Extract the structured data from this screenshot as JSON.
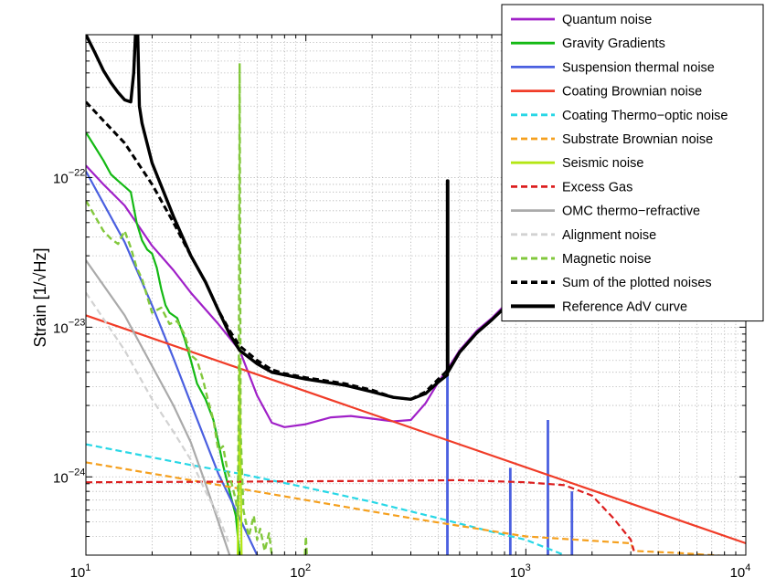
{
  "chart_data": {
    "type": "line",
    "xscale": "log",
    "yscale": "log",
    "xlim": [
      10,
      10000
    ],
    "ylim": [
      3e-25,
      9e-22
    ],
    "grid": true,
    "legend_position": "top-right",
    "ylabel": "Strain [1/√Hz]",
    "xlabel": "",
    "x_ticks": [
      {
        "value": 10,
        "base": "10",
        "exp": "1"
      },
      {
        "value": 100,
        "base": "10",
        "exp": "2"
      },
      {
        "value": 1000,
        "base": "10",
        "exp": "3"
      },
      {
        "value": 10000,
        "base": "10",
        "exp": "4"
      }
    ],
    "y_ticks": [
      {
        "value": 1e-24,
        "base": "10",
        "exp": "−24"
      },
      {
        "value": 1e-23,
        "base": "10",
        "exp": "−23"
      },
      {
        "value": 1e-22,
        "base": "10",
        "exp": "−22"
      }
    ],
    "series": [
      {
        "name": "Quantum noise",
        "color": "#a020c8",
        "dash": "solid",
        "width": 2.2,
        "points": [
          [
            10,
            1.2e-22
          ],
          [
            12,
            9e-23
          ],
          [
            15,
            6.5e-23
          ],
          [
            20,
            3.5e-23
          ],
          [
            25,
            2.4e-23
          ],
          [
            30,
            1.7e-23
          ],
          [
            40,
            1.05e-23
          ],
          [
            50,
            7e-24
          ],
          [
            60,
            3.5e-24
          ],
          [
            70,
            2.3e-24
          ],
          [
            80,
            2.15e-24
          ],
          [
            100,
            2.25e-24
          ],
          [
            130,
            2.5e-24
          ],
          [
            160,
            2.55e-24
          ],
          [
            200,
            2.45e-24
          ],
          [
            250,
            2.35e-24
          ],
          [
            300,
            2.4e-24
          ],
          [
            350,
            3.1e-24
          ],
          [
            400,
            4.3e-24
          ],
          [
            450,
            5.5e-24
          ],
          [
            500,
            7e-24
          ],
          [
            600,
            9.5e-24
          ],
          [
            700,
            1.15e-23
          ],
          [
            800,
            1.4e-23
          ],
          [
            900,
            1.6e-23
          ],
          [
            1000,
            1.8e-23
          ]
        ]
      },
      {
        "name": "Gravity Gradients",
        "color": "#14b914",
        "dash": "solid",
        "width": 2.2,
        "points": [
          [
            10,
            2e-22
          ],
          [
            11,
            1.6e-22
          ],
          [
            12,
            1.3e-22
          ],
          [
            13,
            1.05e-22
          ],
          [
            14,
            9.5e-23
          ],
          [
            15,
            8.7e-23
          ],
          [
            16,
            8e-23
          ],
          [
            17,
            5e-23
          ],
          [
            18,
            3.8e-23
          ],
          [
            19,
            3.3e-23
          ],
          [
            20,
            3.1e-23
          ],
          [
            21,
            2.5e-23
          ],
          [
            22,
            1.8e-23
          ],
          [
            23,
            1.4e-23
          ],
          [
            24,
            1.25e-23
          ],
          [
            26,
            1.15e-23
          ],
          [
            28,
            8.5e-24
          ],
          [
            30,
            6e-24
          ],
          [
            32,
            4.2e-24
          ],
          [
            35,
            3.3e-24
          ],
          [
            38,
            2.4e-24
          ],
          [
            40,
            1.7e-24
          ],
          [
            42,
            1.2e-24
          ],
          [
            45,
            8e-25
          ],
          [
            48,
            5.5e-25
          ],
          [
            50,
            3e-25
          ]
        ]
      },
      {
        "name": "Suspension thermal noise",
        "color": "#4a5fe0",
        "dash": "solid",
        "width": 2.2,
        "points": [
          [
            10,
            1.1e-22
          ],
          [
            15,
            3.7e-23
          ],
          [
            20,
            1.4e-23
          ],
          [
            25,
            6.2e-24
          ],
          [
            30,
            3.1e-24
          ],
          [
            40,
            1.05e-24
          ],
          [
            50,
            5.3e-25
          ],
          [
            60,
            3e-25
          ]
        ],
        "spikes": [
          [
            440,
            3e-25,
            5.5e-24
          ],
          [
            850,
            3e-25,
            1.15e-24
          ],
          [
            1260,
            3e-25,
            2.4e-24
          ],
          [
            1620,
            3e-25,
            8e-25
          ]
        ]
      },
      {
        "name": "Coating Brownian noise",
        "color": "#f03c28",
        "dash": "solid",
        "width": 2.2,
        "points": [
          [
            10,
            1.2e-23
          ],
          [
            10000,
            3.6e-25
          ]
        ]
      },
      {
        "name": "Coating Thermo−optic noise",
        "color": "#28d7e6",
        "dash": "dashed",
        "width": 2.2,
        "points": [
          [
            10,
            1.65e-24
          ],
          [
            20,
            1.35e-24
          ],
          [
            30,
            1.2e-24
          ],
          [
            50,
            1.05e-24
          ],
          [
            100,
            8.5e-25
          ],
          [
            200,
            6.8e-25
          ],
          [
            400,
            5.3e-25
          ],
          [
            700,
            4.3e-25
          ],
          [
            1000,
            3.8e-25
          ],
          [
            1500,
            3e-25
          ]
        ]
      },
      {
        "name": "Substrate Brownian noise",
        "color": "#f5a01e",
        "dash": "dashed",
        "width": 2.2,
        "points": [
          [
            10,
            1.25e-24
          ],
          [
            30,
            9.5e-25
          ],
          [
            100,
            7e-25
          ],
          [
            300,
            5.3e-25
          ],
          [
            1000,
            4e-25
          ],
          [
            3000,
            3.6e-25
          ],
          [
            3100,
            3.2e-25
          ],
          [
            5000,
            3.1e-25
          ],
          [
            10000,
            2.9e-25
          ]
        ]
      },
      {
        "name": "Seismic noise",
        "color": "#b4e614",
        "dash": "solid",
        "width": 2.2,
        "points": [
          [
            49,
            3e-25
          ],
          [
            49.5,
            1e-24
          ],
          [
            50,
            6e-24
          ],
          [
            50.5,
            1.2e-24
          ],
          [
            51,
            3e-25
          ]
        ]
      },
      {
        "name": "Excess Gas",
        "color": "#dc1e1e",
        "dash": "dashed",
        "width": 2.2,
        "points": [
          [
            10,
            9.2e-25
          ],
          [
            50,
            9.3e-25
          ],
          [
            200,
            9.4e-25
          ],
          [
            500,
            9.5e-25
          ],
          [
            1000,
            9.2e-25
          ],
          [
            1500,
            8.8e-25
          ],
          [
            2000,
            7.5e-25
          ],
          [
            2500,
            5.3e-25
          ],
          [
            3000,
            3.8e-25
          ],
          [
            3100,
            3.2e-25
          ]
        ]
      },
      {
        "name": "OMC thermo−refractive",
        "color": "#aaaaaa",
        "dash": "solid",
        "width": 2.2,
        "points": [
          [
            10,
            2.8e-23
          ],
          [
            15,
            1.2e-23
          ],
          [
            20,
            5.5e-24
          ],
          [
            25,
            3e-24
          ],
          [
            30,
            1.7e-24
          ],
          [
            35,
            9e-25
          ],
          [
            40,
            5e-25
          ],
          [
            45,
            3e-25
          ]
        ]
      },
      {
        "name": "Alignment noise",
        "color": "#d2d2d2",
        "dash": "dashed",
        "width": 2.2,
        "points": [
          [
            10,
            1.7e-23
          ],
          [
            15,
            7e-24
          ],
          [
            20,
            3.3e-24
          ],
          [
            25,
            2e-24
          ],
          [
            30,
            1.3e-24
          ],
          [
            35,
            8e-25
          ],
          [
            40,
            5.5e-25
          ],
          [
            45,
            3.5e-25
          ]
        ]
      },
      {
        "name": "Magnetic noise",
        "color": "#82c83c",
        "dash": "dashed",
        "width": 2.4,
        "points": [
          [
            10,
            7e-23
          ],
          [
            11,
            5.5e-23
          ],
          [
            12,
            4.4e-23
          ],
          [
            13,
            3.9e-23
          ],
          [
            14,
            3.6e-23
          ],
          [
            15,
            4.4e-23
          ],
          [
            16,
            3.4e-23
          ],
          [
            17,
            2.5e-23
          ],
          [
            18,
            2.1e-23
          ],
          [
            19,
            1.6e-23
          ],
          [
            20,
            1.25e-23
          ],
          [
            22,
            1.35e-23
          ],
          [
            24,
            1.05e-23
          ],
          [
            26,
            1.1e-23
          ],
          [
            28,
            9e-24
          ],
          [
            30,
            6.5e-24
          ],
          [
            32,
            6e-24
          ],
          [
            34,
            4.5e-24
          ],
          [
            36,
            3.2e-24
          ],
          [
            38,
            2.4e-24
          ],
          [
            40,
            1.5e-24
          ],
          [
            42,
            1.6e-24
          ],
          [
            44,
            1.1e-24
          ],
          [
            46,
            9e-25
          ],
          [
            48,
            7e-25
          ],
          [
            49,
            5.5e-25
          ],
          [
            49.5,
            3e-24
          ],
          [
            50,
            5.8e-22
          ],
          [
            50.5,
            2e-24
          ],
          [
            52,
            6e-25
          ],
          [
            55,
            4e-25
          ],
          [
            58,
            5.5e-25
          ],
          [
            60,
            3.8e-25
          ],
          [
            62,
            4.5e-25
          ],
          [
            65,
            3.2e-25
          ],
          [
            68,
            4.2e-25
          ],
          [
            70,
            3e-25
          ]
        ],
        "extra": [
          [
            99,
            3e-25
          ],
          [
            100,
            4e-25
          ],
          [
            101,
            3e-25
          ]
        ]
      },
      {
        "name": "Sum of the plotted noises",
        "color": "#000000",
        "dash": "dashed",
        "width": 3,
        "points": [
          [
            10,
            3.2e-22
          ],
          [
            12,
            2.4e-22
          ],
          [
            15,
            1.7e-22
          ],
          [
            20,
            9e-23
          ],
          [
            25,
            5e-23
          ],
          [
            30,
            3e-23
          ],
          [
            35,
            2e-23
          ],
          [
            40,
            1.3e-23
          ],
          [
            45,
            9.5e-24
          ],
          [
            50,
            7.5e-24
          ],
          [
            60,
            6e-24
          ],
          [
            70,
            5.2e-24
          ],
          [
            80,
            4.9e-24
          ],
          [
            100,
            4.6e-24
          ],
          [
            150,
            4.2e-24
          ],
          [
            200,
            3.8e-24
          ],
          [
            250,
            3.4e-24
          ],
          [
            300,
            3.3e-24
          ],
          [
            350,
            3.7e-24
          ],
          [
            400,
            4.5e-24
          ],
          [
            450,
            5.3e-24
          ],
          [
            500,
            6.8e-24
          ],
          [
            600,
            9.2e-24
          ],
          [
            700,
            1.12e-23
          ],
          [
            800,
            1.35e-23
          ],
          [
            900,
            1.55e-23
          ],
          [
            1000,
            1.8e-23
          ]
        ]
      },
      {
        "name": "Reference AdV curve",
        "color": "#000000",
        "dash": "solid",
        "width": 3.4,
        "points": [
          [
            10,
            9e-22
          ],
          [
            11,
            6.8e-22
          ],
          [
            12,
            5.2e-22
          ],
          [
            13,
            4.3e-22
          ],
          [
            14,
            3.7e-22
          ],
          [
            15,
            3.3e-22
          ],
          [
            16,
            3.2e-22
          ],
          [
            16.5,
            5e-22
          ],
          [
            16.8,
            9e-22
          ],
          [
            17.2,
            9e-22
          ],
          [
            17.5,
            3e-22
          ],
          [
            18,
            2.3e-22
          ],
          [
            20,
            1.25e-22
          ],
          [
            25,
            5.5e-23
          ],
          [
            30,
            3e-23
          ],
          [
            35,
            2e-23
          ],
          [
            40,
            1.3e-23
          ],
          [
            45,
            9e-24
          ],
          [
            50,
            7e-24
          ],
          [
            60,
            5.7e-24
          ],
          [
            70,
            5e-24
          ],
          [
            80,
            4.8e-24
          ],
          [
            100,
            4.5e-24
          ],
          [
            150,
            4.1e-24
          ],
          [
            200,
            3.7e-24
          ],
          [
            250,
            3.4e-24
          ],
          [
            300,
            3.3e-24
          ],
          [
            350,
            3.6e-24
          ],
          [
            400,
            4.3e-24
          ],
          [
            440,
            4.8e-24
          ],
          [
            440,
            9.5e-23
          ],
          [
            442,
            9.5e-23
          ],
          [
            442,
            5e-24
          ],
          [
            500,
            6.8e-24
          ],
          [
            600,
            9.2e-24
          ],
          [
            700,
            1.12e-23
          ],
          [
            800,
            1.35e-23
          ],
          [
            900,
            1.55e-23
          ],
          [
            1000,
            1.8e-23
          ]
        ]
      }
    ]
  }
}
